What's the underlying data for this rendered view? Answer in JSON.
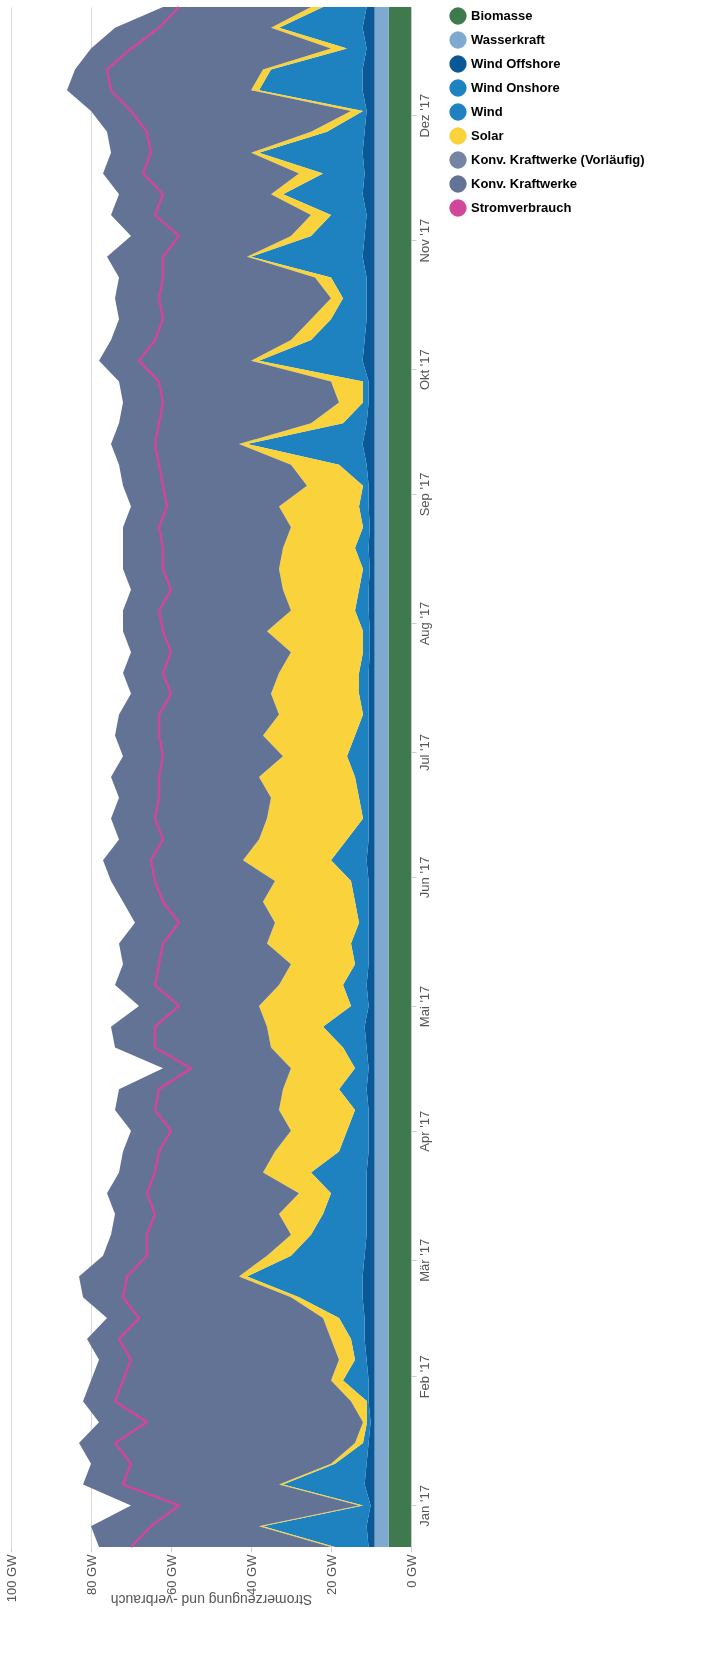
{
  "chart_data": {
    "type": "area",
    "stacked": true,
    "orientation": "horizontal",
    "xlabel": "Stromerzeugung und -verbrauch",
    "xlim": [
      100,
      0
    ],
    "xticks": [
      {
        "value": 0,
        "label": "0 GW"
      },
      {
        "value": 20,
        "label": "20 GW"
      },
      {
        "value": 40,
        "label": "40 GW"
      },
      {
        "value": 60,
        "label": "60 GW"
      },
      {
        "value": 80,
        "label": "80 GW"
      },
      {
        "value": 100,
        "label": "100 GW"
      }
    ],
    "ylim": [
      "2016-12-22",
      "2017-12-27"
    ],
    "yticks": [
      {
        "value": "2017-01-01",
        "label": "Jan '17"
      },
      {
        "value": "2017-02-01",
        "label": "Feb '17"
      },
      {
        "value": "2017-03-01",
        "label": "Mär '17"
      },
      {
        "value": "2017-04-01",
        "label": "Apr '17"
      },
      {
        "value": "2017-05-01",
        "label": "Mai '17"
      },
      {
        "value": "2017-06-01",
        "label": "Jun '17"
      },
      {
        "value": "2017-07-01",
        "label": "Jul '17"
      },
      {
        "value": "2017-08-01",
        "label": "Aug '17"
      },
      {
        "value": "2017-09-01",
        "label": "Sep '17"
      },
      {
        "value": "2017-10-01",
        "label": "Okt '17"
      },
      {
        "value": "2017-11-01",
        "label": "Nov '17"
      },
      {
        "value": "2017-12-01",
        "label": "Dez '17"
      }
    ],
    "grid": "x",
    "legend": "right",
    "x": [
      "2016-12-22",
      "2016-12-27",
      "2017-01-01",
      "2017-01-06",
      "2017-01-11",
      "2017-01-16",
      "2017-01-21",
      "2017-01-26",
      "2017-01-31",
      "2017-02-05",
      "2017-02-10",
      "2017-02-15",
      "2017-02-20",
      "2017-02-25",
      "2017-03-02",
      "2017-03-07",
      "2017-03-12",
      "2017-03-17",
      "2017-03-22",
      "2017-03-27",
      "2017-04-01",
      "2017-04-06",
      "2017-04-11",
      "2017-04-16",
      "2017-04-21",
      "2017-04-26",
      "2017-05-01",
      "2017-05-06",
      "2017-05-11",
      "2017-05-16",
      "2017-05-21",
      "2017-05-26",
      "2017-05-31",
      "2017-06-05",
      "2017-06-10",
      "2017-06-15",
      "2017-06-20",
      "2017-06-25",
      "2017-06-30",
      "2017-07-05",
      "2017-07-10",
      "2017-07-15",
      "2017-07-20",
      "2017-07-25",
      "2017-07-30",
      "2017-08-04",
      "2017-08-09",
      "2017-08-14",
      "2017-08-19",
      "2017-08-24",
      "2017-08-29",
      "2017-09-03",
      "2017-09-08",
      "2017-09-13",
      "2017-09-18",
      "2017-09-23",
      "2017-09-28",
      "2017-10-03",
      "2017-10-08",
      "2017-10-13",
      "2017-10-18",
      "2017-10-23",
      "2017-10-28",
      "2017-11-02",
      "2017-11-07",
      "2017-11-12",
      "2017-11-17",
      "2017-11-22",
      "2017-11-27",
      "2017-12-02",
      "2017-12-07",
      "2017-12-12",
      "2017-12-17",
      "2017-12-22",
      "2017-12-27"
    ],
    "series": [
      {
        "name": "Biomasse",
        "color": "#3f7a4e",
        "values": [
          5.6,
          5.6,
          5.6,
          5.6,
          5.6,
          5.6,
          5.6,
          5.6,
          5.6,
          5.6,
          5.6,
          5.6,
          5.6,
          5.6,
          5.6,
          5.6,
          5.6,
          5.6,
          5.6,
          5.6,
          5.6,
          5.6,
          5.6,
          5.6,
          5.6,
          5.6,
          5.6,
          5.6,
          5.6,
          5.6,
          5.6,
          5.6,
          5.6,
          5.6,
          5.6,
          5.6,
          5.6,
          5.6,
          5.6,
          5.6,
          5.6,
          5.6,
          5.6,
          5.6,
          5.6,
          5.6,
          5.6,
          5.6,
          5.6,
          5.6,
          5.6,
          5.6,
          5.6,
          5.6,
          5.6,
          5.6,
          5.6,
          5.6,
          5.6,
          5.6,
          5.6,
          5.6,
          5.6,
          5.6,
          5.6,
          5.6,
          5.6,
          5.6,
          5.6,
          5.6,
          5.6,
          5.6,
          5.6,
          5.6,
          5.6
        ]
      },
      {
        "name": "Wasserkraft",
        "color": "#7eaad1",
        "values": [
          3.5,
          3.5,
          3.5,
          3.5,
          3.5,
          3.5,
          3.5,
          3.5,
          3.5,
          3.5,
          3.5,
          3.5,
          3.5,
          3.5,
          3.5,
          3.5,
          3.5,
          3.5,
          3.5,
          3.5,
          3.5,
          3.5,
          3.5,
          3.5,
          3.5,
          3.5,
          3.5,
          3.5,
          3.5,
          3.5,
          3.5,
          3.5,
          3.5,
          3.5,
          3.5,
          3.5,
          3.5,
          3.5,
          3.5,
          3.5,
          3.5,
          3.5,
          3.5,
          3.5,
          3.5,
          3.5,
          3.5,
          3.5,
          3.5,
          3.5,
          3.5,
          3.5,
          3.5,
          3.5,
          3.5,
          3.5,
          3.5,
          3.5,
          3.5,
          3.5,
          3.5,
          3.5,
          3.5,
          3.5,
          3.5,
          3.5,
          3.5,
          3.5,
          3.5,
          3.5,
          3.5,
          3.5,
          3.5,
          3.5,
          3.5
        ]
      },
      {
        "name": "Wind Offshore",
        "color": "#0b5896",
        "values": [
          1.5,
          2,
          1,
          2.5,
          2,
          1.5,
          1,
          1.5,
          1.5,
          2,
          2.5,
          2.5,
          3,
          3,
          2.5,
          2,
          2,
          2,
          2,
          1.5,
          1.5,
          1.5,
          2,
          1.5,
          2,
          2.5,
          1.5,
          2,
          1.5,
          1.5,
          1.5,
          1.5,
          1.5,
          2,
          1.5,
          1.5,
          1.5,
          1.5,
          1.5,
          1.5,
          1.5,
          1.5,
          1.5,
          1.2,
          1.2,
          1.5,
          1.5,
          1.2,
          1.5,
          1.2,
          1.5,
          1.5,
          2,
          3,
          2,
          1.5,
          1.5,
          3,
          2.5,
          2,
          2,
          2,
          3,
          2.5,
          2,
          3,
          2.5,
          3,
          2.5,
          2,
          3,
          3,
          2,
          3,
          2
        ]
      },
      {
        "name": "Wind Onshore",
        "color": "#1f82c0",
        "values": [
          8.4,
          25.9,
          1.9,
          20.4,
          7.9,
          1.4,
          0.9,
          0.4,
          6.4,
          2.9,
          3.4,
          6.4,
          15.9,
          28.9,
          18.4,
          13.9,
          10.9,
          8.9,
          13.9,
          7.4,
          5.4,
          3.4,
          6.9,
          3.4,
          5.9,
          10.4,
          4.4,
          5.9,
          3.4,
          4.4,
          2.4,
          3.4,
          4.4,
          8.9,
          5.4,
          1.4,
          2.4,
          3.4,
          5.4,
          3.4,
          1.4,
          2.4,
          2.4,
          1.7,
          1.7,
          3.4,
          2.4,
          1.7,
          3.4,
          1.7,
          2.4,
          1.4,
          6.9,
          28.9,
          5.9,
          1.4,
          1.4,
          25.9,
          13.4,
          8.9,
          5.9,
          8.9,
          27.9,
          13.4,
          8.9,
          19.9,
          10.4,
          25.9,
          9.4,
          0.9,
          25.9,
          22.9,
          4.9,
          20.9,
          10.9
        ]
      },
      {
        "name": "Wind",
        "color": "#1f82c0",
        "values": [
          null,
          null,
          null,
          null,
          null,
          null,
          null,
          null,
          null,
          null,
          null,
          null,
          null,
          null,
          null,
          null,
          null,
          null,
          null,
          null,
          null,
          null,
          null,
          null,
          null,
          null,
          null,
          null,
          null,
          null,
          null,
          null,
          null,
          null,
          null,
          null,
          null,
          null,
          null,
          null,
          null,
          null,
          null,
          null,
          null,
          null,
          null,
          null,
          null,
          null,
          null,
          null,
          null,
          null,
          null,
          null,
          null,
          null,
          null,
          null,
          null,
          null,
          null,
          null,
          null,
          null,
          null,
          null,
          null,
          null,
          null,
          null,
          null,
          null,
          null
        ]
      },
      {
        "name": "Solar",
        "color": "#f9d23c",
        "values": [
          1,
          1,
          1,
          1,
          1,
          2,
          1,
          4,
          3,
          4,
          5,
          4,
          2,
          2,
          6,
          5,
          11,
          8,
          12,
          16,
          14,
          19,
          14,
          16,
          18,
          14,
          23,
          16,
          16,
          21,
          21,
          23,
          19,
          22,
          22,
          24,
          22,
          24,
          16,
          23,
          21,
          22,
          20,
          18,
          24,
          16,
          19,
          21,
          18,
          18,
          20,
          14,
          12,
          2,
          8,
          6,
          8,
          2,
          5,
          5,
          3,
          4,
          1,
          5,
          5,
          3,
          6,
          2,
          4,
          3,
          2,
          2,
          4,
          2,
          3
        ]
      },
      {
        "name": "Konv. Kraftwerke (Vorläufig)",
        "color": "#7584a3",
        "values": [
          null,
          null,
          null,
          null,
          null,
          null,
          null,
          null,
          null,
          null,
          null,
          null,
          null,
          null,
          null,
          null,
          null,
          null,
          null,
          null,
          null,
          null,
          null,
          null,
          null,
          null,
          null,
          null,
          null,
          null,
          null,
          null,
          null,
          null,
          null,
          null,
          null,
          null,
          null,
          null,
          null,
          null,
          null,
          null,
          null,
          null,
          null,
          null,
          null,
          null,
          null,
          null,
          null,
          null,
          null,
          null,
          null,
          null,
          null,
          null,
          null,
          null,
          null,
          null,
          null,
          null,
          null,
          null,
          null,
          null,
          null,
          null,
          null,
          null,
          null
        ]
      },
      {
        "name": "Konv. Kraftwerke",
        "color": "#627395",
        "values": [
          58,
          42,
          57,
          49,
          60,
          69,
          66,
          67,
          60,
          60,
          61,
          54,
          52,
          40,
          41,
          45,
          41,
          48,
          36,
          38,
          40,
          41,
          41,
          32,
          39,
          39,
          30,
          41,
          42,
          37,
          35,
          35,
          41,
          35,
          35,
          39,
          38,
          37,
          40,
          37,
          40,
          35,
          39,
          40,
          36,
          42,
          38,
          39,
          40,
          42,
          37,
          46,
          43,
          32,
          48,
          54,
          53,
          38,
          45,
          48,
          54,
          49,
          35,
          40,
          50,
          38,
          49,
          35,
          51,
          65,
          46,
          47,
          60,
          39,
          37
        ]
      },
      {
        "name": "Stromverbrauch",
        "type": "line",
        "color": "#d0479a",
        "values": [
          70,
          65,
          58,
          72,
          70,
          74,
          66,
          74,
          72,
          70,
          73,
          68,
          72,
          71,
          66,
          66,
          64,
          66,
          64,
          63,
          60,
          64,
          63,
          55,
          64,
          64,
          58,
          64,
          63,
          62,
          58,
          62,
          64,
          65,
          62,
          64,
          63,
          63,
          62,
          63,
          63,
          60,
          62,
          60,
          62,
          63,
          60,
          62,
          62,
          63,
          61,
          62,
          63,
          64,
          63,
          62,
          63,
          68,
          64,
          62,
          63,
          62,
          62,
          58,
          64,
          62,
          67,
          65,
          66,
          70,
          75,
          76,
          70,
          63,
          58
        ]
      }
    ]
  }
}
